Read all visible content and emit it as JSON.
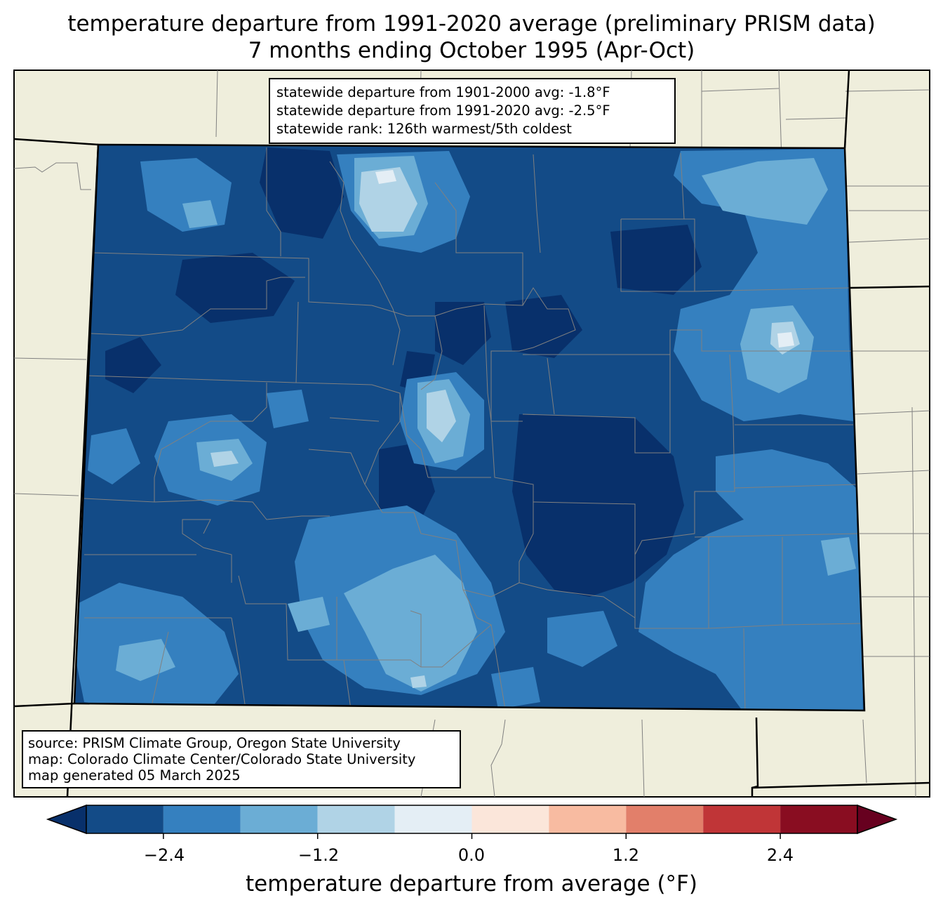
{
  "title": {
    "line1": "temperature departure from 1991-2020 average (preliminary PRISM data)",
    "line2": "7 months ending October 1995 (Apr-Oct)"
  },
  "stats": {
    "line1": "statewide departure from 1901-2000 avg: -1.8°F",
    "line2": "statewide departure from 1991-2020 avg: -2.5°F",
    "line3": "statewide rank: 126th warmest/5th coldest"
  },
  "source": {
    "line1": "source: PRISM Climate Group, Oregon State University",
    "line2": "map: Colorado Climate Center/Colorado State University",
    "line3": "map generated 05 March 2025"
  },
  "colorbar": {
    "label": "temperature departure from average (°F)",
    "ticks": [
      "−2.4",
      "−1.2",
      "0.0",
      "1.2",
      "2.4"
    ],
    "levels": [
      -3.0,
      -2.4,
      -1.8,
      -1.2,
      -0.6,
      0.0,
      0.6,
      1.2,
      1.8,
      2.4,
      3.0
    ],
    "colors": [
      "#08306b",
      "#134b87",
      "#3580bf",
      "#6badd5",
      "#b0d3e6",
      "#e4eef5",
      "#fbe6da",
      "#f8bba1",
      "#e27f6a",
      "#c03537",
      "#890d21",
      "#67001f"
    ]
  },
  "colors": {
    "land": "#efeedc",
    "state_base": "#134b87",
    "border": "#000000",
    "county_lines": "#808080"
  }
}
